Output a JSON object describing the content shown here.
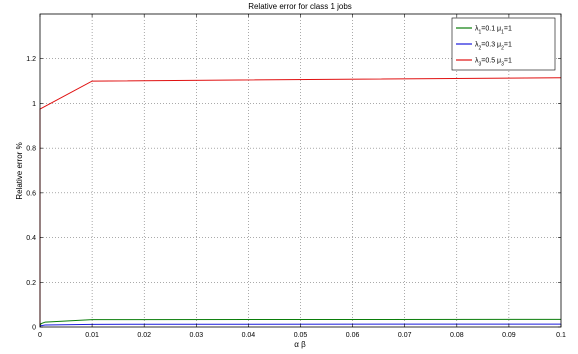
{
  "chart_data": {
    "type": "line",
    "title": "Relative error for class 1 jobs",
    "xlabel": "α β",
    "ylabel": "Relative error %",
    "xlim": [
      0,
      0.1
    ],
    "ylim": [
      0,
      1.4
    ],
    "grid": true,
    "legend_position": "top-right",
    "xticks": [
      0,
      0.01,
      0.02,
      0.03,
      0.04,
      0.05,
      0.06,
      0.07,
      0.08,
      0.09,
      0.1
    ],
    "xtick_labels": [
      "0",
      "0.01",
      "0.02",
      "0.03",
      "0.04",
      "0.05",
      "0.06",
      "0.07",
      "0.08",
      "0.09",
      "0.1"
    ],
    "yticks": [
      0,
      0.2,
      0.4,
      0.6,
      0.8,
      1,
      1.2
    ],
    "ytick_labels": [
      "0",
      "0.2",
      "0.4",
      "0.6",
      "0.8",
      "1",
      "1.2"
    ],
    "x": [
      0,
      0.001,
      0.01,
      0.1
    ],
    "series": [
      {
        "name": "λ1=0.1 μ1=1",
        "legend": {
          "lambda": "λ",
          "sub1": "1",
          "mid": "=0.1 μ",
          "sub2": "1",
          "end": "=1"
        },
        "color": "#0a7d0a",
        "x": [
          0,
          0.0002,
          0.001,
          0.01,
          0.1
        ],
        "values": [
          0.005,
          0.015,
          0.022,
          0.033,
          0.034
        ]
      },
      {
        "name": "λ2=0.3 μ2=1",
        "legend": {
          "lambda": "λ",
          "sub1": "2",
          "mid": "=0.3 μ",
          "sub2": "2",
          "end": "=1"
        },
        "color": "#1a1adb",
        "x": [
          0,
          0.0002,
          0.001,
          0.01,
          0.1
        ],
        "values": [
          0.002,
          0.006,
          0.009,
          0.012,
          0.013
        ]
      },
      {
        "name": "λ3=0.5 μ3=1",
        "legend": {
          "lambda": "λ",
          "sub1": "3",
          "mid": "=0.5 μ",
          "sub2": "3",
          "end": "=1"
        },
        "color": "#e01010",
        "x": [
          0,
          0,
          0.01,
          0.1
        ],
        "values": [
          0,
          0.975,
          1.1,
          1.115
        ]
      }
    ]
  }
}
